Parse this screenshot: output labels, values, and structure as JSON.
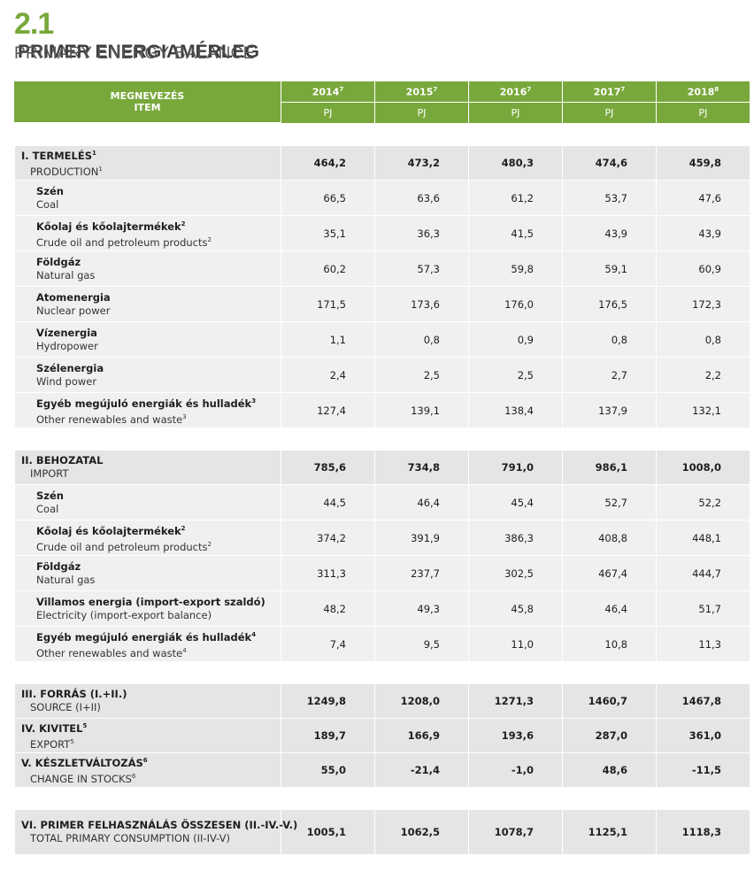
{
  "title": {
    "number": "2.1",
    "hu": "PRIMER ENERGIAMÉRLEG",
    "en": "PRIMARY ENERGY BALANCE"
  },
  "header": {
    "item_hu": "MEGNEVEZÉS",
    "item_en": "ITEM",
    "years": [
      {
        "year": "2014",
        "note": "7"
      },
      {
        "year": "2015",
        "note": "7"
      },
      {
        "year": "2016",
        "note": "7"
      },
      {
        "year": "2017",
        "note": "7"
      },
      {
        "year": "2018",
        "note": "8"
      }
    ],
    "unit": "PJ"
  },
  "rows": [
    {
      "type": "main",
      "hu": "I. TERMELÉS",
      "hu_note": "1",
      "en": "PRODUCTION",
      "en_note": "1",
      "values": [
        "464,2",
        "473,2",
        "480,3",
        "474,6",
        "459,8"
      ]
    },
    {
      "type": "sub",
      "hu": "Szén",
      "en": "Coal",
      "values": [
        "66,5",
        "63,6",
        "61,2",
        "53,7",
        "47,6"
      ]
    },
    {
      "type": "sub",
      "hu": "Kőolaj és kőolajtermékek",
      "hu_note": "2",
      "en": "Crude oil and petroleum products",
      "en_note": "2",
      "values": [
        "35,1",
        "36,3",
        "41,5",
        "43,9",
        "43,9"
      ]
    },
    {
      "type": "sub",
      "hu": "Földgáz",
      "en": "Natural gas",
      "values": [
        "60,2",
        "57,3",
        "59,8",
        "59,1",
        "60,9"
      ]
    },
    {
      "type": "sub",
      "hu": "Atomenergia",
      "en": "Nuclear power",
      "values": [
        "171,5",
        "173,6",
        "176,0",
        "176,5",
        "172,3"
      ]
    },
    {
      "type": "sub",
      "hu": "Vízenergia",
      "en": "Hydropower",
      "values": [
        "1,1",
        "0,8",
        "0,9",
        "0,8",
        "0,8"
      ]
    },
    {
      "type": "sub",
      "hu": "Szélenergia",
      "en": "Wind power",
      "values": [
        "2,4",
        "2,5",
        "2,5",
        "2,7",
        "2,2"
      ]
    },
    {
      "type": "sub",
      "hu": "Egyéb megújuló energiák és hulladék",
      "hu_note": "3",
      "en": "Other renewables and waste",
      "en_note": "3",
      "values": [
        "127,4",
        "139,1",
        "138,4",
        "137,9",
        "132,1"
      ]
    },
    {
      "type": "spacer"
    },
    {
      "type": "main",
      "hu": "II. BEHOZATAL",
      "en": "IMPORT",
      "values": [
        "785,6",
        "734,8",
        "791,0",
        "986,1",
        "1008,0"
      ]
    },
    {
      "type": "sub",
      "hu": "Szén",
      "en": "Coal",
      "values": [
        "44,5",
        "46,4",
        "45,4",
        "52,7",
        "52,2"
      ]
    },
    {
      "type": "sub",
      "hu": "Kőolaj és kőolajtermékek",
      "hu_note": "2",
      "en": "Crude oil and petroleum products",
      "en_note": "2",
      "values": [
        "374,2",
        "391,9",
        "386,3",
        "408,8",
        "448,1"
      ]
    },
    {
      "type": "sub",
      "hu": "Földgáz",
      "en": "Natural gas",
      "values": [
        "311,3",
        "237,7",
        "302,5",
        "467,4",
        "444,7"
      ]
    },
    {
      "type": "sub",
      "hu": "Villamos energia (import-export szaldó)",
      "en": "Electricity (import-export balance)",
      "values": [
        "48,2",
        "49,3",
        "45,8",
        "46,4",
        "51,7"
      ]
    },
    {
      "type": "sub",
      "hu": "Egyéb megújuló energiák és hulladék",
      "hu_note": "4",
      "en": "Other renewables and waste",
      "en_note": "4",
      "values": [
        "7,4",
        "9,5",
        "11,0",
        "10,8",
        "11,3"
      ]
    },
    {
      "type": "spacer"
    },
    {
      "type": "main",
      "hu": "III. FORRÁS (I.+II.)",
      "en": "SOURCE (I+II)",
      "values": [
        "1249,8",
        "1208,0",
        "1271,3",
        "1460,7",
        "1467,8"
      ]
    },
    {
      "type": "main",
      "hu": "IV. KIVITEL",
      "hu_note": "5",
      "en": "EXPORT",
      "en_note": "5",
      "values": [
        "189,7",
        "166,9",
        "193,6",
        "287,0",
        "361,0"
      ]
    },
    {
      "type": "main",
      "hu": "V. KÉSZLETVÁLTOZÁS",
      "hu_note": "6",
      "en": "CHANGE IN STOCKS",
      "en_note": "6",
      "values": [
        "55,0",
        "-21,4",
        "-1,0",
        "48,6",
        "-11,5"
      ]
    },
    {
      "type": "spacer"
    },
    {
      "type": "main",
      "last": true,
      "hu": "VI. PRIMER FELHASZNÁLÁS ÖSSZESEN (II.-IV.-V.)",
      "en": "TOTAL PRIMARY CONSUMPTION (II-IV-V)",
      "values": [
        "1005,1",
        "1062,5",
        "1078,7",
        "1125,1",
        "1118,3"
      ]
    }
  ]
}
